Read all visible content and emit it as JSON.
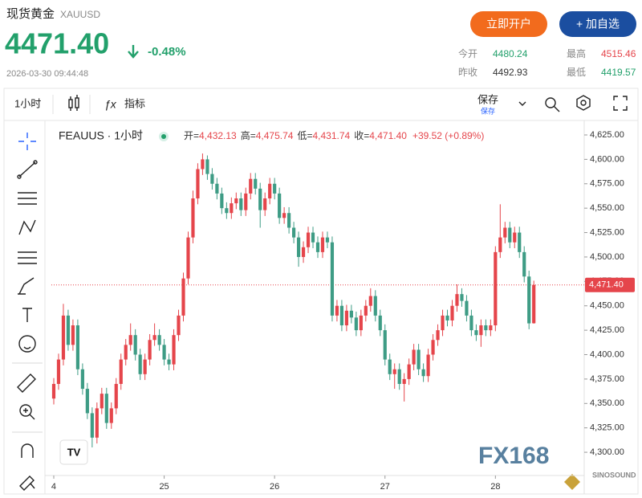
{
  "header": {
    "title": "现货黄金",
    "symbol": "XAUUSD",
    "price": "4471.40",
    "change": "-0.48%",
    "timestamp": "2026-03-30 09:44:48",
    "open_account": "立即开户",
    "add_watch": "+ 加自选",
    "stats": [
      {
        "label": "今开",
        "value": "4480.24",
        "color": "#22a06b"
      },
      {
        "label": "最高",
        "value": "4515.46",
        "color": "#e5454b"
      },
      {
        "label": "昨收",
        "value": "4492.93",
        "color": "#333333"
      },
      {
        "label": "最低",
        "value": "4419.57",
        "color": "#22a06b"
      }
    ]
  },
  "toolbar": {
    "interval": "1小时",
    "indicators": "指标",
    "save": "保存",
    "save_sub": "保存"
  },
  "chart_data": {
    "type": "candlestick",
    "symbol_label": "FEAUUS · 1小时",
    "legend": [
      {
        "label": "开=",
        "value": "4,432.13"
      },
      {
        "label": "高=",
        "value": "4,475.74"
      },
      {
        "label": "低=",
        "value": "4,431.74"
      },
      {
        "label": "收=",
        "value": "4,471.40"
      }
    ],
    "legend_change": "+39.52 (+0.89%)",
    "up_color": "#e5454b",
    "down_color": "#3e9c85",
    "x": [
      0,
      1,
      2,
      3,
      4,
      5,
      6,
      7,
      8,
      9,
      10,
      11,
      12,
      13,
      14,
      15,
      16,
      17,
      18,
      19,
      20,
      21,
      22,
      23,
      24,
      25,
      26,
      27,
      28,
      29,
      30,
      31,
      32,
      33,
      34,
      35,
      36,
      37,
      38,
      39,
      40,
      41,
      42,
      43,
      44,
      45,
      46,
      47,
      48,
      49,
      50,
      51,
      52,
      53,
      54,
      55,
      56,
      57,
      58,
      59,
      60,
      61,
      62,
      63,
      64,
      65,
      66,
      67,
      68,
      69,
      70,
      71,
      72,
      73,
      74,
      75,
      76,
      77,
      78,
      79,
      80,
      81,
      82,
      83,
      84,
      85,
      86,
      87,
      88,
      89,
      90,
      91,
      92,
      93,
      94,
      95,
      96,
      97,
      98,
      99,
      100
    ],
    "open": [
      4355,
      4370,
      4395,
      4440,
      4410,
      4430,
      4385,
      4365,
      4340,
      4315,
      4345,
      4360,
      4330,
      4345,
      4370,
      4395,
      4410,
      4420,
      4400,
      4380,
      4395,
      4415,
      4420,
      4410,
      4395,
      4390,
      4420,
      4440,
      4478,
      4520,
      4560,
      4590,
      4600,
      4585,
      4575,
      4565,
      4550,
      4545,
      4555,
      4560,
      4548,
      4565,
      4580,
      4570,
      4548,
      4560,
      4575,
      4565,
      4540,
      4545,
      4530,
      4520,
      4500,
      4510,
      4525,
      4515,
      4505,
      4520,
      4515,
      4440,
      4450,
      4430,
      4445,
      4438,
      4425,
      4440,
      4450,
      4460,
      4440,
      4425,
      4395,
      4380,
      4385,
      4370,
      4375,
      4390,
      4405,
      4385,
      4378,
      4400,
      4415,
      4425,
      4440,
      4435,
      4450,
      4462,
      4455,
      4440,
      4425,
      4420,
      4430,
      4425,
      4430,
      4505,
      4520,
      4530,
      4515,
      4525,
      4505,
      4480,
      4432.13
    ],
    "high": [
      4376,
      4401,
      4452,
      4446,
      4436,
      4436,
      4391,
      4371,
      4346,
      4351,
      4366,
      4366,
      4351,
      4376,
      4401,
      4416,
      4432,
      4426,
      4406,
      4401,
      4421,
      4432,
      4426,
      4416,
      4401,
      4426,
      4446,
      4484,
      4526,
      4568,
      4596,
      4606,
      4604,
      4591,
      4581,
      4571,
      4556,
      4561,
      4566,
      4566,
      4571,
      4586,
      4586,
      4576,
      4566,
      4581,
      4581,
      4571,
      4551,
      4551,
      4536,
      4526,
      4516,
      4531,
      4531,
      4521,
      4526,
      4526,
      4521,
      4456,
      4456,
      4451,
      4451,
      4444,
      4446,
      4456,
      4468,
      4466,
      4446,
      4431,
      4401,
      4391,
      4391,
      4381,
      4396,
      4411,
      4411,
      4391,
      4406,
      4421,
      4431,
      4446,
      4446,
      4456,
      4472,
      4468,
      4461,
      4446,
      4431,
      4436,
      4436,
      4436,
      4511,
      4554,
      4536,
      4536,
      4531,
      4531,
      4511,
      4486,
      4475.74
    ],
    "low": [
      4349,
      4364,
      4389,
      4404,
      4404,
      4379,
      4359,
      4334,
      4305,
      4309,
      4339,
      4324,
      4324,
      4339,
      4364,
      4389,
      4404,
      4394,
      4374,
      4374,
      4389,
      4409,
      4404,
      4389,
      4384,
      4384,
      4414,
      4434,
      4472,
      4514,
      4554,
      4584,
      4579,
      4569,
      4559,
      4544,
      4539,
      4539,
      4549,
      4542,
      4542,
      4559,
      4564,
      4530,
      4542,
      4554,
      4559,
      4534,
      4534,
      4524,
      4514,
      4490,
      4494,
      4504,
      4509,
      4499,
      4499,
      4509,
      4434,
      4434,
      4424,
      4424,
      4432,
      4419,
      4419,
      4434,
      4444,
      4434,
      4419,
      4389,
      4374,
      4365,
      4364,
      4352,
      4369,
      4384,
      4379,
      4372,
      4372,
      4394,
      4409,
      4419,
      4429,
      4429,
      4444,
      4449,
      4434,
      4419,
      4414,
      4408,
      4419,
      4419,
      4424,
      4499,
      4514,
      4509,
      4509,
      4499,
      4474,
      4426,
      4431.74
    ],
    "close": [
      4370,
      4395,
      4440,
      4410,
      4430,
      4385,
      4365,
      4340,
      4315,
      4345,
      4360,
      4330,
      4345,
      4370,
      4395,
      4410,
      4420,
      4400,
      4380,
      4395,
      4415,
      4420,
      4410,
      4395,
      4390,
      4420,
      4440,
      4478,
      4520,
      4560,
      4590,
      4600,
      4585,
      4575,
      4565,
      4550,
      4545,
      4555,
      4560,
      4548,
      4565,
      4580,
      4570,
      4548,
      4560,
      4575,
      4565,
      4540,
      4545,
      4530,
      4520,
      4500,
      4510,
      4525,
      4515,
      4505,
      4520,
      4515,
      4440,
      4450,
      4430,
      4445,
      4438,
      4425,
      4440,
      4450,
      4460,
      4440,
      4425,
      4395,
      4380,
      4385,
      4370,
      4375,
      4390,
      4405,
      4385,
      4378,
      4400,
      4415,
      4425,
      4440,
      4435,
      4450,
      4462,
      4455,
      4440,
      4425,
      4420,
      4430,
      4425,
      4430,
      4505,
      4520,
      4530,
      4515,
      4525,
      4505,
      4480,
      4432,
      4471.4
    ],
    "xlim": [
      -0.5,
      110.5
    ],
    "xticks": [
      {
        "value": 0,
        "label": "4"
      },
      {
        "value": 23,
        "label": "25"
      },
      {
        "value": 46,
        "label": "26"
      },
      {
        "value": 69,
        "label": "27"
      },
      {
        "value": 92,
        "label": "28"
      }
    ],
    "ylim": [
      4276.2,
      4639.8
    ],
    "yticks": [
      {
        "value": 4300,
        "label": "4,300.00"
      },
      {
        "value": 4325,
        "label": "4,325.00"
      },
      {
        "value": 4350,
        "label": "4,350.00"
      },
      {
        "value": 4375,
        "label": "4,375.00"
      },
      {
        "value": 4400,
        "label": "4,400.00"
      },
      {
        "value": 4425,
        "label": "4,425.00"
      },
      {
        "value": 4450,
        "label": "4,450.00"
      },
      {
        "value": 4475,
        "label": "4,475.00"
      },
      {
        "value": 4500,
        "label": "4,500.00"
      },
      {
        "value": 4525,
        "label": "4,525.00"
      },
      {
        "value": 4550,
        "label": "4,550.00"
      },
      {
        "value": 4575,
        "label": "4,575.00"
      },
      {
        "value": 4600,
        "label": "4,600.00"
      },
      {
        "value": 4625,
        "label": "4,625.00"
      }
    ],
    "last_price": {
      "value": 4471.4,
      "label": "4,471.40"
    },
    "watermark": "FX168",
    "logo": "SINOSOUND"
  }
}
